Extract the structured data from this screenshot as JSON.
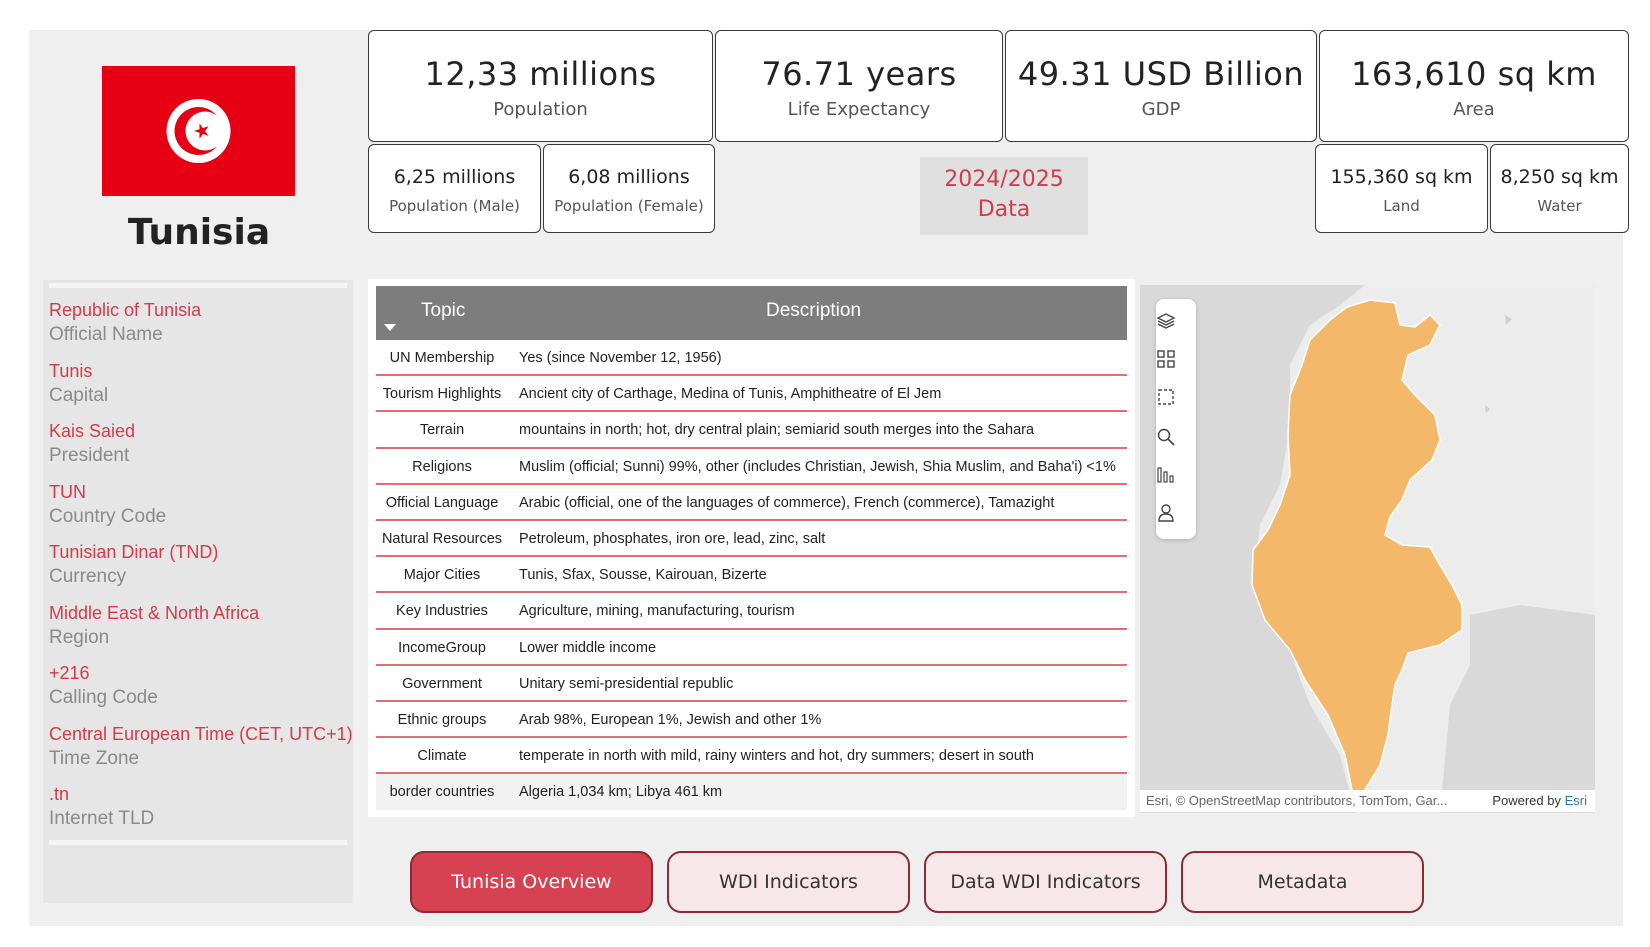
{
  "country": {
    "name": "Tunisia",
    "flag_colors": {
      "field": "#e70013",
      "emblem": "#ffffff"
    }
  },
  "info": [
    {
      "value": "Republic of Tunisia",
      "label": "Official Name"
    },
    {
      "value": "Tunis",
      "label": "Capital"
    },
    {
      "value": "Kais Saied",
      "label": "President"
    },
    {
      "value": "TUN",
      "label": "Country Code"
    },
    {
      "value": "Tunisian Dinar (TND)",
      "label": "Currency"
    },
    {
      "value": "Middle East & North Africa",
      "label": "Region"
    },
    {
      "value": "+216",
      "label": "Calling Code"
    },
    {
      "value": "Central European Time (CET, UTC+1)",
      "label": "Time Zone"
    },
    {
      "value": ".tn",
      "label": "Internet TLD"
    }
  ],
  "kpis": {
    "population": {
      "value": "12,33 millions",
      "label": "Population"
    },
    "life_expectancy": {
      "value": "76.71 years",
      "label": "Life Expectancy"
    },
    "gdp": {
      "value": "49.31 USD Billion",
      "label": "GDP"
    },
    "area": {
      "value": "163,610 sq km",
      "label": "Area"
    },
    "pop_male": {
      "value": "6,25 millions",
      "label": "Population (Male)"
    },
    "pop_female": {
      "value": "6,08 millions",
      "label": "Population (Female)"
    },
    "land": {
      "value": "155,360 sq km",
      "label": "Land"
    },
    "water": {
      "value": "8,250 sq km",
      "label": "Water"
    }
  },
  "data_badge": {
    "line1": "2024/2025",
    "line2": "Data"
  },
  "table": {
    "headers": {
      "topic": "Topic",
      "description": "Description"
    },
    "rows": [
      {
        "topic": "UN Membership",
        "description": "Yes (since November 12, 1956)"
      },
      {
        "topic": "Tourism Highlights",
        "description": "Ancient city of Carthage, Medina of Tunis, Amphitheatre of El Jem"
      },
      {
        "topic": "Terrain",
        "description": "mountains in north; hot, dry central plain; semiarid south merges into the Sahara"
      },
      {
        "topic": "Religions",
        "description": "Muslim (official; Sunni) 99%, other (includes Christian, Jewish, Shia Muslim, and Baha'i) <1%"
      },
      {
        "topic": "Official Language",
        "description": "Arabic (official, one of the languages of commerce), French (commerce), Tamazight"
      },
      {
        "topic": "Natural Resources",
        "description": "Petroleum, phosphates, iron ore, lead, zinc, salt"
      },
      {
        "topic": "Major Cities",
        "description": "Tunis, Sfax, Sousse, Kairouan, Bizerte"
      },
      {
        "topic": "Key Industries",
        "description": "Agriculture, mining, manufacturing, tourism"
      },
      {
        "topic": "IncomeGroup",
        "description": "Lower middle income"
      },
      {
        "topic": "Government",
        "description": "Unitary semi-presidential republic"
      },
      {
        "topic": "Ethnic groups",
        "description": "Arab 98%, European 1%, Jewish and other 1%"
      },
      {
        "topic": "Climate",
        "description": "temperate in north with mild, rainy winters and hot, dry summers; desert in south"
      },
      {
        "topic": "border countries",
        "description": "Algeria 1,034 km; Libya 461 km"
      }
    ]
  },
  "map": {
    "attribution": "Esri, © OpenStreetMap contributors, TomTom, Gar...",
    "powered_by": "Powered by",
    "esri": "Esri",
    "country_fill": "#f4b86a",
    "sea_color": "#ececec",
    "land_color": "#d9d9d9",
    "tools": [
      "layers-icon",
      "qr-select-icon",
      "rectangle-select-icon",
      "search-icon",
      "bar-chart-icon",
      "person-icon"
    ]
  },
  "nav": [
    {
      "label": "Tunisia Overview",
      "active": true
    },
    {
      "label": "WDI Indicators",
      "active": false
    },
    {
      "label": "Data WDI Indicators",
      "active": false
    },
    {
      "label": "Metadata",
      "active": false
    }
  ]
}
